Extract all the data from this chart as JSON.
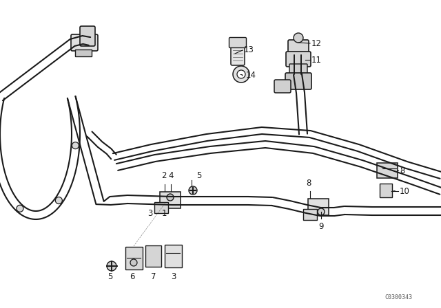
{
  "bg_color": "#ffffff",
  "lc": "#1a1a1a",
  "fig_width": 6.4,
  "fig_height": 4.48,
  "dpi": 100,
  "watermark": "C0300343"
}
